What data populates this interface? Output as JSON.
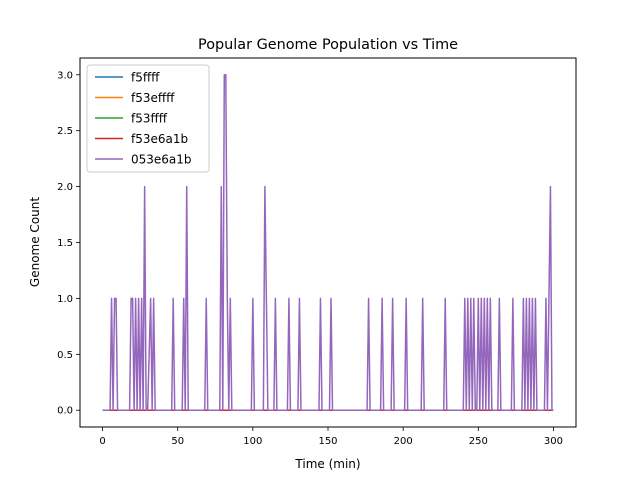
{
  "chart_data": {
    "type": "line",
    "title": "Popular Genome Population vs Time",
    "xlabel": "Time (min)",
    "ylabel": "Genome Count",
    "xlim": [
      -15,
      315
    ],
    "ylim": [
      -0.15,
      3.15
    ],
    "xticks": [
      0,
      50,
      100,
      150,
      200,
      250,
      300
    ],
    "yticks": [
      0.0,
      0.5,
      1.0,
      1.5,
      2.0,
      2.5,
      3.0
    ],
    "xtick_labels": [
      "0",
      "50",
      "100",
      "150",
      "200",
      "250",
      "300"
    ],
    "ytick_labels": [
      "0.0",
      "0.5",
      "1.0",
      "1.5",
      "2.0",
      "2.5",
      "3.0"
    ],
    "grid": false,
    "legend_position": "upper-left",
    "series": [
      {
        "name": "f5ffff",
        "color": "#1f77b4",
        "x": [
          0,
          300
        ],
        "y": [
          0,
          0
        ]
      },
      {
        "name": "f53effff",
        "color": "#ff7f0e",
        "x": [
          0,
          300
        ],
        "y": [
          0,
          0
        ]
      },
      {
        "name": "f53ffff",
        "color": "#2ca02c",
        "x": [
          0,
          300
        ],
        "y": [
          0,
          0
        ]
      },
      {
        "name": "f53e6a1b",
        "color": "#d62728",
        "x": [
          0,
          300
        ],
        "y": [
          0,
          0
        ]
      },
      {
        "name": "053e6a1b",
        "color": "#9467bd",
        "x": [
          0,
          5,
          6,
          7,
          8,
          9,
          10,
          18,
          19,
          20,
          21,
          22,
          23,
          24,
          25,
          26,
          27,
          28,
          29,
          30,
          32,
          33,
          34,
          35,
          36,
          46,
          47,
          48,
          53,
          54,
          55,
          56,
          57,
          58,
          68,
          69,
          70,
          78,
          79,
          80,
          81,
          82,
          83,
          84,
          85,
          86,
          99,
          100,
          101,
          107,
          108,
          109,
          110,
          114,
          115,
          116,
          123,
          124,
          125,
          130,
          131,
          132,
          144,
          145,
          146,
          151,
          152,
          153,
          176,
          177,
          178,
          185,
          186,
          187,
          192,
          193,
          194,
          201,
          202,
          203,
          212,
          213,
          214,
          227,
          228,
          229,
          240,
          241,
          242,
          243,
          244,
          245,
          246,
          247,
          248,
          249,
          250,
          251,
          252,
          253,
          254,
          255,
          256,
          257,
          258,
          259,
          263,
          264,
          265,
          272,
          273,
          274,
          279,
          280,
          281,
          282,
          283,
          284,
          285,
          286,
          287,
          288,
          289,
          294,
          295,
          296,
          297,
          298,
          299,
          300
        ],
        "y": [
          0,
          0,
          1,
          0,
          1,
          1,
          0,
          0,
          1,
          1,
          0,
          1,
          0,
          1,
          0,
          1,
          0,
          2,
          0,
          0,
          1,
          0,
          1,
          0,
          0,
          0,
          1,
          0,
          0,
          1,
          0,
          2,
          0,
          0,
          0,
          1,
          0,
          0,
          2,
          0,
          3,
          3,
          1,
          0,
          1,
          0,
          0,
          1,
          0,
          0,
          2,
          1,
          0,
          0,
          1,
          0,
          0,
          1,
          0,
          0,
          1,
          0,
          0,
          1,
          0,
          0,
          1,
          0,
          0,
          1,
          0,
          0,
          1,
          0,
          0,
          1,
          0,
          0,
          1,
          0,
          0,
          1,
          0,
          0,
          1,
          0,
          0,
          1,
          0,
          1,
          0,
          1,
          0,
          1,
          0,
          0,
          1,
          0,
          1,
          0,
          1,
          0,
          1,
          0,
          1,
          0,
          0,
          1,
          0,
          0,
          1,
          0,
          0,
          1,
          0,
          1,
          0,
          1,
          0,
          1,
          0,
          1,
          0,
          0,
          1,
          0,
          1,
          2,
          0,
          0
        ]
      }
    ]
  }
}
